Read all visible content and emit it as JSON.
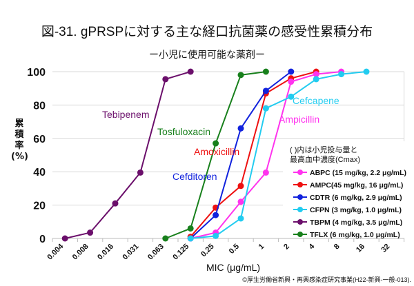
{
  "chart_data": {
    "type": "line",
    "title": "図-31. gPRSPに対する主な経口抗菌薬の感受性累積分布",
    "subtitle": "ー小児に使用可能な薬剤ー",
    "xlabel": "MIC (μg/mL)",
    "ylabel": "累積率 (%)",
    "ylabel_lines": [
      "累",
      "積",
      "率",
      "(%)"
    ],
    "categories": [
      "0.004",
      "0.008",
      "0.016",
      "0.031",
      "0.063",
      "0.125",
      "0.25",
      "0.5",
      "1",
      "2",
      "4",
      "8",
      "16",
      "32"
    ],
    "yticks": [
      "0",
      "20",
      "40",
      "60",
      "80",
      "100"
    ],
    "ylim": [
      0,
      100
    ],
    "grid": true,
    "legend_title": [
      "( )内は小児投与量と",
      "最高血中濃度(Cmax)"
    ],
    "legend_placement": "right",
    "series": [
      {
        "name": "ABPC (15 mg/kg, 2.2 μg/mL)",
        "label": "Ampicillin",
        "color": "#ff33ee",
        "values": [
          null,
          null,
          null,
          null,
          null,
          0,
          3.5,
          22,
          39.5,
          94,
          98.5,
          100,
          null,
          null
        ]
      },
      {
        "name": "AMPC(45 mg/kg, 16 μg/mL)",
        "label": "Amoxicillin",
        "color": "#ee1111",
        "values": [
          null,
          null,
          null,
          null,
          null,
          1,
          18.5,
          31.5,
          87,
          96,
          100,
          null,
          null,
          null
        ]
      },
      {
        "name": "CDTR (6 mg/kg, 2.9 μg/mL)",
        "label": "Cefditoren",
        "color": "#1122dd",
        "values": [
          null,
          null,
          null,
          null,
          null,
          0,
          14,
          66,
          88.5,
          100,
          null,
          null,
          null,
          null
        ]
      },
      {
        "name": "CFPN (3 mg/kg, 1.0 μg/mL)",
        "label": "Cefcapene",
        "color": "#22ccf0",
        "values": [
          null,
          null,
          null,
          null,
          null,
          0,
          1.5,
          12,
          78,
          85,
          95.5,
          98.5,
          100,
          null
        ]
      },
      {
        "name": "TBPM (4 mg/kg, 3.5 μg/mL)",
        "label": "Tebipenem",
        "color": "#6b0f6b",
        "values": [
          0,
          3.5,
          21,
          39.5,
          95.5,
          100,
          null,
          null,
          null,
          null,
          null,
          null,
          null,
          null
        ]
      },
      {
        "name": "TFLX (6 mg/kg, 1.0 μg/mL)",
        "label": "Tosfuloxacin",
        "color": "#18801c",
        "values": [
          null,
          null,
          null,
          null,
          0,
          6,
          57,
          98,
          100,
          null,
          null,
          null,
          null,
          null
        ]
      }
    ]
  },
  "copyright": "©厚生労働省新興・再興感染症研究事業(H22-新興-一般-013)."
}
